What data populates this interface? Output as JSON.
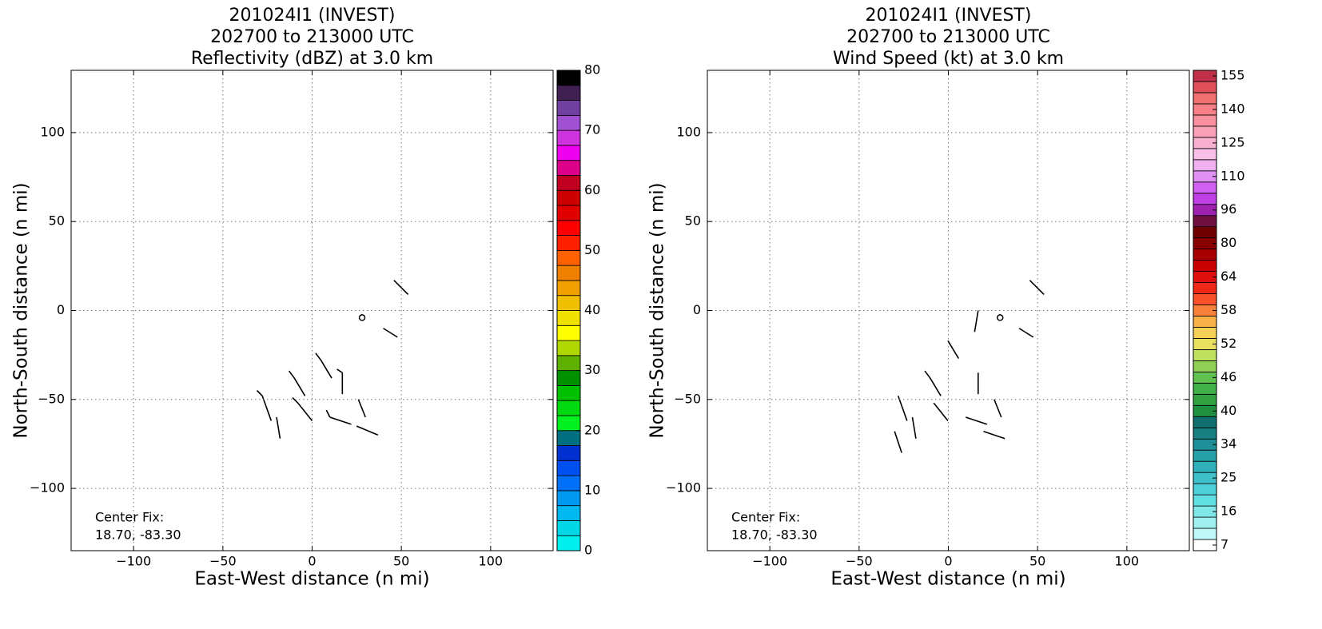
{
  "chart_data": [
    {
      "type": "radar-map",
      "title": [
        "201024I1 (INVEST)",
        "202700 to 213000 UTC",
        "Reflectivity (dBZ) at 3.0 km"
      ],
      "xlabel": "East-West distance (n mi)",
      "ylabel": "North-South distance (n mi)",
      "xlim": [
        -135,
        135
      ],
      "ylim": [
        -135,
        135
      ],
      "xticks": [
        {
          "value": -100,
          "label": "−100"
        },
        {
          "value": -50,
          "label": "−50"
        },
        0,
        50,
        100
      ],
      "yticks": [
        {
          "value": -100,
          "label": "−100"
        },
        {
          "value": -50,
          "label": "−50"
        },
        0,
        50,
        100
      ],
      "grid": true,
      "annotation": [
        "Center Fix:",
        "18.70, -83.30"
      ],
      "center": [
        28,
        -4
      ],
      "colorbar": {
        "lim": [
          0,
          80
        ],
        "ticks": [
          0,
          10,
          20,
          30,
          40,
          50,
          60,
          70,
          80
        ],
        "colors": [
          "#00f0f0",
          "#00d8e8",
          "#00b8f0",
          "#0098f0",
          "#0070f8",
          "#0050f0",
          "#0030d0",
          "#007080",
          "#00f020",
          "#00d810",
          "#00c000",
          "#009000",
          "#60b000",
          "#b0d800",
          "#ffff00",
          "#f0e000",
          "#f0c000",
          "#f0a000",
          "#f08000",
          "#ff6000",
          "#ff2000",
          "#ff0000",
          "#e00000",
          "#cc0000",
          "#c00020",
          "#dd0088",
          "#ee00ee",
          "#cc33dd",
          "#a050d0",
          "#7040a0",
          "#402050",
          "#000000"
        ]
      }
    },
    {
      "type": "radar-map",
      "title": [
        "201024I1 (INVEST)",
        "202700 to 213000 UTC",
        "Wind Speed (kt) at 3.0 km"
      ],
      "xlabel": "East-West distance (n mi)",
      "ylabel": "North-South distance (n mi)",
      "xlim": [
        -135,
        135
      ],
      "ylim": [
        -135,
        135
      ],
      "xticks": [
        {
          "value": -100,
          "label": "−100"
        },
        {
          "value": -50,
          "label": "−50"
        },
        0,
        50,
        100
      ],
      "yticks": [
        {
          "value": -100,
          "label": "−100"
        },
        {
          "value": -50,
          "label": "−50"
        },
        0,
        50,
        100
      ],
      "grid": true,
      "annotation": [
        "Center Fix:",
        "18.70, -83.30"
      ],
      "center": [
        29,
        -4
      ],
      "colorbar": {
        "ticks": [
          7,
          16,
          25,
          34,
          40,
          46,
          52,
          58,
          64,
          80,
          96,
          110,
          125,
          140,
          155
        ],
        "colors": [
          "#ffffff",
          "#c0f8f8",
          "#a0f0f0",
          "#80e8e8",
          "#60e0e0",
          "#50d0d8",
          "#40c0c8",
          "#30b0b8",
          "#28a0a8",
          "#209098",
          "#188080",
          "#107070",
          "#209040",
          "#30a040",
          "#40b048",
          "#60c050",
          "#90d058",
          "#c0e060",
          "#e8e060",
          "#f8d058",
          "#f8b048",
          "#f88038",
          "#f85028",
          "#f02818",
          "#e01010",
          "#c80000",
          "#a80000",
          "#880000",
          "#700000",
          "#701040",
          "#a020b0",
          "#c040e8",
          "#d060f0",
          "#e090f0",
          "#f0b0f0",
          "#f8c0e8",
          "#f8b0d0",
          "#f8a0b8",
          "#f890a0",
          "#f88088",
          "#f07070",
          "#e05058",
          "#c03048"
        ]
      }
    }
  ]
}
